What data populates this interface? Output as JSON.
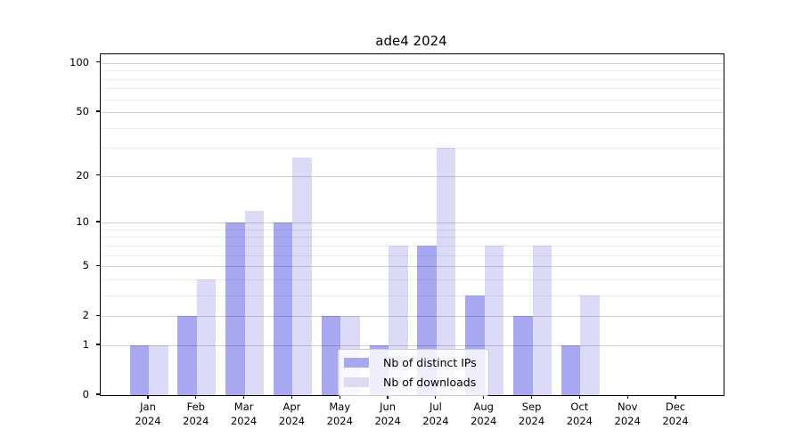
{
  "title": "ade4 2024",
  "legend": {
    "items": [
      {
        "label": "Nb of distinct IPs",
        "color": "#a8a8f2"
      },
      {
        "label": "Nb of downloads",
        "color": "#dbdbf7"
      }
    ]
  },
  "y_axis": {
    "tick_labels": [
      "100",
      "50",
      "20",
      "10",
      "5",
      "2",
      "1",
      "0"
    ]
  },
  "x_axis": {
    "tick_labels": [
      "Jan 2024",
      "Feb 2024",
      "Mar 2024",
      "Apr 2024",
      "May 2024",
      "Jun 2024",
      "Jul 2024",
      "Aug 2024",
      "Sep 2024",
      "Oct 2024",
      "Nov 2024",
      "Dec 2024"
    ]
  },
  "chart_data": {
    "type": "bar",
    "title": "ade4 2024",
    "categories": [
      "Jan 2024",
      "Feb 2024",
      "Mar 2024",
      "Apr 2024",
      "May 2024",
      "Jun 2024",
      "Jul 2024",
      "Aug 2024",
      "Sep 2024",
      "Oct 2024",
      "Nov 2024",
      "Dec 2024"
    ],
    "series": [
      {
        "name": "Nb of distinct IPs",
        "color": "#a8a8f2",
        "values": [
          1,
          2,
          10,
          10,
          2,
          1,
          7,
          3,
          2,
          1,
          0,
          0
        ]
      },
      {
        "name": "Nb of downloads",
        "color": "#dbdbf7",
        "values": [
          1,
          4,
          12,
          26,
          2,
          7,
          30,
          7,
          7,
          3,
          0,
          0
        ]
      }
    ],
    "xlabel": "",
    "ylabel": "",
    "y_scale": "log1p",
    "y_ticks": [
      0,
      1,
      2,
      5,
      10,
      20,
      50,
      100
    ],
    "y_minor_ticks": [
      3,
      4,
      6,
      7,
      8,
      9,
      30,
      40,
      60,
      70,
      80,
      90
    ],
    "ylim": [
      0,
      113
    ],
    "grid": "both, drawn above bars",
    "legend_position": "lower center"
  }
}
